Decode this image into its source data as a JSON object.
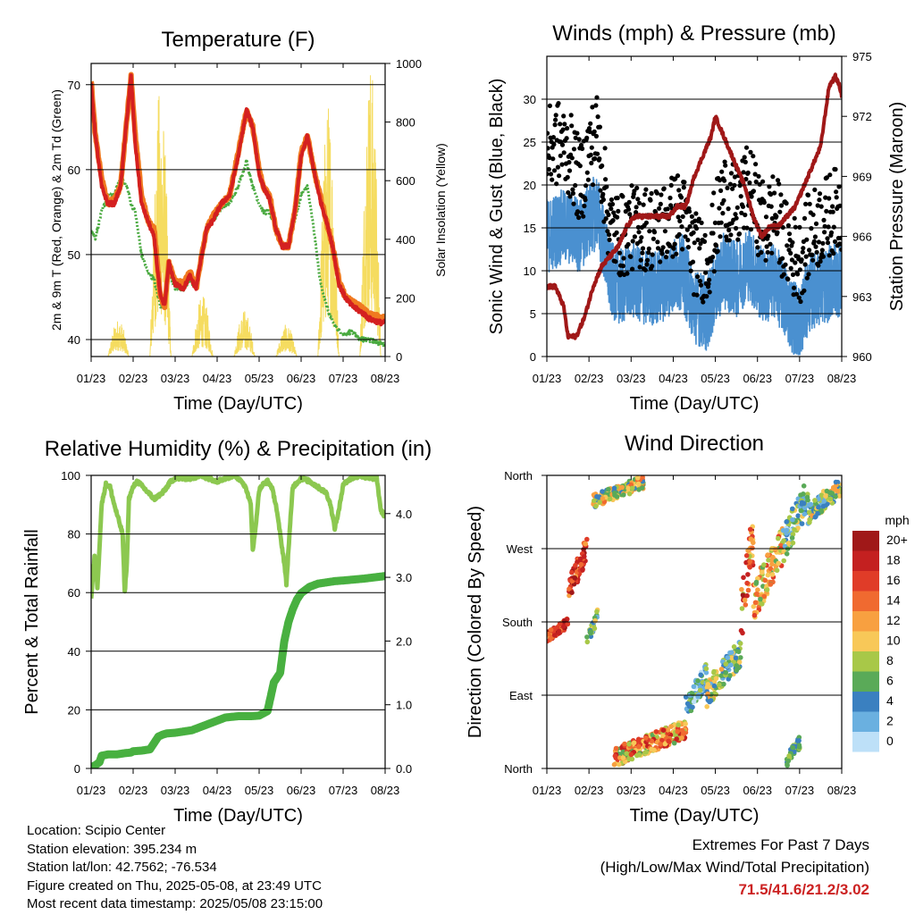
{
  "chart_data": [
    {
      "id": "temperature",
      "type": "line",
      "title": "Temperature (F)",
      "xlabel": "Time (Day/UTC)",
      "ylabel": "2m & 9m T (Red, Orange) & 2m Td (Green)",
      "ylabel_right": "Solar Insolation (Yellow)",
      "x_ticks": [
        "01/23",
        "02/23",
        "03/23",
        "04/23",
        "05/23",
        "06/23",
        "07/23",
        "08/23"
      ],
      "xlim": [
        0,
        7
      ],
      "ylim": [
        38,
        72.5
      ],
      "y_ticks": [
        40,
        50,
        60,
        70
      ],
      "ylim_right": [
        0,
        1000
      ],
      "y_ticks_right": [
        0,
        200,
        400,
        600,
        800,
        1000
      ],
      "grid": true,
      "colors": {
        "t2m": "#d42020",
        "t9m": "#f07a20",
        "td": "#4aaa40",
        "solar": "#f5dc60"
      },
      "series": [
        {
          "key": "t9m",
          "x": [
            0,
            0.1,
            0.25,
            0.4,
            0.55,
            0.7,
            0.85,
            0.95,
            1.05,
            1.2,
            1.35,
            1.5,
            1.65,
            1.75,
            1.85,
            2.0,
            2.2,
            2.35,
            2.5,
            2.6,
            2.75,
            2.9,
            3.1,
            3.3,
            3.5,
            3.7,
            3.85,
            4.0,
            4.1,
            4.25,
            4.4,
            4.55,
            4.7,
            4.85,
            5.0,
            5.15,
            5.3,
            5.45,
            5.6,
            5.75,
            5.9,
            6.05,
            6.2,
            6.35,
            6.5,
            6.6,
            6.75,
            6.9,
            7.0
          ],
          "y": [
            70.5,
            64,
            59,
            56,
            56.5,
            58,
            66,
            71,
            64,
            57,
            54,
            53,
            45,
            44,
            49,
            47,
            46.5,
            48,
            46,
            49,
            53,
            54.5,
            56,
            57,
            62,
            67,
            65,
            60,
            58,
            57,
            53,
            51,
            51,
            55,
            62,
            64,
            60,
            57,
            54,
            51,
            47,
            45,
            44.5,
            44,
            43.5,
            43,
            42.8,
            42.5,
            42.5
          ]
        },
        {
          "key": "t2m",
          "x": [
            0,
            0.1,
            0.25,
            0.4,
            0.55,
            0.7,
            0.85,
            0.95,
            1.05,
            1.2,
            1.35,
            1.5,
            1.65,
            1.75,
            1.85,
            2.0,
            2.2,
            2.35,
            2.5,
            2.6,
            2.75,
            2.9,
            3.1,
            3.3,
            3.5,
            3.7,
            3.85,
            4.0,
            4.1,
            4.25,
            4.4,
            4.55,
            4.7,
            4.85,
            5.0,
            5.15,
            5.3,
            5.45,
            5.6,
            5.75,
            5.9,
            6.05,
            6.2,
            6.35,
            6.5,
            6.6,
            6.75,
            6.9,
            7.0
          ],
          "y": [
            70,
            64,
            58,
            56,
            56,
            58,
            66,
            71,
            63,
            56,
            54,
            52,
            45,
            44,
            49,
            46.5,
            46,
            47.5,
            46,
            49,
            53,
            54,
            56,
            57,
            61.5,
            67,
            65,
            59.5,
            58,
            56.5,
            53,
            51,
            51,
            55,
            61.5,
            64,
            60,
            56.5,
            54,
            51,
            46.5,
            45,
            44,
            43.5,
            43,
            42.5,
            42.2,
            42,
            42
          ]
        },
        {
          "key": "td",
          "x": [
            0,
            0.1,
            0.25,
            0.4,
            0.55,
            0.7,
            0.85,
            0.95,
            1.05,
            1.2,
            1.35,
            1.5,
            1.65,
            1.75,
            1.85,
            2.0,
            2.2,
            2.35,
            2.5,
            2.6,
            2.75,
            2.9,
            3.1,
            3.3,
            3.5,
            3.7,
            3.85,
            4.0,
            4.1,
            4.25,
            4.4,
            4.55,
            4.7,
            4.85,
            5.0,
            5.15,
            5.3,
            5.45,
            5.6,
            5.75,
            5.9,
            6.05,
            6.2,
            6.35,
            6.5,
            6.6,
            6.75,
            6.9,
            7.0
          ],
          "y": [
            53,
            52,
            55,
            57,
            57,
            59,
            58,
            56,
            55,
            50,
            48,
            47,
            44,
            44,
            48,
            46,
            46,
            47,
            46,
            48.5,
            53,
            54,
            55.5,
            56,
            58,
            61,
            58,
            56,
            55,
            55,
            53,
            51,
            51,
            54,
            57,
            58,
            53,
            47,
            44,
            42,
            41,
            40.5,
            41,
            40.2,
            40,
            40,
            39.8,
            39.5,
            39.5
          ]
        },
        {
          "key": "solar",
          "days": [
            0,
            1,
            2,
            3,
            4,
            5,
            6
          ],
          "peaks": [
            130,
            940,
            210,
            160,
            110,
            880,
            1020
          ],
          "noon_offset": 0.65
        }
      ]
    },
    {
      "id": "winds",
      "type": "line",
      "title": "Winds (mph) & Pressure (mb)",
      "xlabel": "Time (Day/UTC)",
      "ylabel": "Sonic Wind & Gust (Blue, Black)",
      "ylabel_right": "Station Pressure (Maroon)",
      "x_ticks": [
        "01/23",
        "02/23",
        "03/23",
        "04/23",
        "05/23",
        "06/23",
        "07/23",
        "08/23"
      ],
      "xlim": [
        0,
        7
      ],
      "ylim": [
        0,
        35
      ],
      "y_ticks": [
        0,
        5,
        10,
        15,
        20,
        25,
        30
      ],
      "ylim_right": [
        960,
        975
      ],
      "y_ticks_right": [
        960,
        963,
        966,
        969,
        972,
        975
      ],
      "grid": true,
      "colors": {
        "wind": "#4a90d0",
        "gust": "#000000",
        "pressure": "#a01818"
      },
      "series": [
        {
          "key": "wind_level",
          "x": [
            0,
            0.3,
            0.6,
            0.8,
            1.0,
            1.2,
            1.5,
            1.8,
            2.0,
            2.3,
            2.6,
            2.9,
            3.2,
            3.5,
            3.8,
            4.0,
            4.2,
            4.5,
            4.8,
            5.0,
            5.2,
            5.4,
            5.6,
            5.8,
            6.0,
            6.2,
            6.4,
            6.6,
            6.8,
            7.0
          ],
          "y": [
            14,
            15,
            15,
            14,
            16,
            17,
            9,
            8,
            9,
            8,
            8,
            9,
            10,
            6,
            5,
            8,
            10,
            9,
            11,
            9,
            8,
            9,
            7,
            5,
            4,
            7,
            8,
            8,
            9,
            9
          ]
        },
        {
          "key": "gust_level",
          "x": [
            0,
            0.3,
            0.6,
            0.8,
            1.0,
            1.2,
            1.5,
            1.8,
            2.0,
            2.3,
            2.6,
            2.9,
            3.2,
            3.5,
            3.8,
            4.0,
            4.2,
            4.5,
            4.8,
            5.0,
            5.2,
            5.4,
            5.6,
            5.8,
            6.0,
            6.2,
            6.4,
            6.6,
            6.8,
            7.0
          ],
          "y": [
            22,
            23,
            21,
            18,
            22,
            24,
            13,
            12,
            13,
            13,
            13,
            14,
            15,
            10,
            9,
            13,
            17,
            15,
            18,
            15,
            13,
            15,
            12,
            10,
            9,
            12,
            13,
            14,
            15,
            15
          ]
        },
        {
          "key": "pressure",
          "x": [
            0,
            0.2,
            0.4,
            0.5,
            0.7,
            0.9,
            1.1,
            1.3,
            1.5,
            1.7,
            1.9,
            2.1,
            2.3,
            2.5,
            2.7,
            2.9,
            3.1,
            3.3,
            3.5,
            3.7,
            3.9,
            4.0,
            4.1,
            4.3,
            4.5,
            4.7,
            4.9,
            5.1,
            5.3,
            5.5,
            5.7,
            5.9,
            6.1,
            6.3,
            6.5,
            6.7,
            6.85,
            6.95,
            7.0
          ],
          "y": [
            963.5,
            963.5,
            962.5,
            961,
            961,
            962,
            963.5,
            964.5,
            965,
            965.5,
            966.5,
            967,
            967,
            967,
            967,
            967,
            967.5,
            967.5,
            969,
            970,
            971,
            972,
            971.5,
            970.5,
            969.5,
            968.5,
            967,
            966,
            966.5,
            966.5,
            967,
            967.5,
            968.5,
            969.5,
            970.5,
            973.5,
            974,
            973.5,
            973
          ]
        }
      ]
    },
    {
      "id": "humidity_precip",
      "type": "line",
      "title": "Relative Humidity (%) & Precipitation (in)",
      "xlabel": "Time (Day/UTC)",
      "ylabel": "Percent & Total Rainfall",
      "x_ticks": [
        "01/23",
        "02/23",
        "03/23",
        "04/23",
        "05/23",
        "06/23",
        "07/23",
        "08/23"
      ],
      "xlim": [
        0,
        7
      ],
      "ylim": [
        0,
        100
      ],
      "y_ticks": [
        0,
        20,
        40,
        60,
        80,
        100
      ],
      "ylim_right": [
        0,
        4.6
      ],
      "y_ticks_right": [
        "0.0",
        "1.0",
        "2.0",
        "3.0",
        "4.0"
      ],
      "grid": true,
      "colors": {
        "rh": "#8cc850",
        "precip": "#48b040"
      },
      "series": [
        {
          "key": "rh",
          "x": [
            0,
            0.08,
            0.15,
            0.25,
            0.35,
            0.45,
            0.55,
            0.65,
            0.75,
            0.8,
            0.85,
            0.9,
            1.0,
            1.1,
            1.3,
            1.5,
            1.7,
            1.9,
            2.0,
            2.2,
            2.4,
            2.6,
            2.8,
            3.0,
            3.2,
            3.4,
            3.6,
            3.7,
            3.8,
            3.85,
            3.9,
            4.0,
            4.1,
            4.2,
            4.3,
            4.4,
            4.5,
            4.6,
            4.65,
            4.7,
            4.8,
            5.0,
            5.2,
            5.4,
            5.6,
            5.7,
            5.8,
            5.9,
            6.0,
            6.2,
            6.4,
            6.6,
            6.8,
            6.9,
            7.0
          ],
          "y": [
            58,
            72,
            62,
            90,
            97,
            96,
            90,
            85,
            80,
            60,
            70,
            92,
            96,
            98,
            95,
            92,
            94,
            98,
            99,
            99,
            99,
            100,
            99,
            98,
            99,
            100,
            98,
            95,
            90,
            75,
            80,
            95,
            97,
            98,
            96,
            90,
            80,
            70,
            63,
            75,
            96,
            99,
            98,
            96,
            94,
            90,
            82,
            88,
            97,
            99,
            100,
            99,
            99,
            88,
            86
          ]
        },
        {
          "key": "precip",
          "x": [
            0,
            0.1,
            0.2,
            0.25,
            0.4,
            0.6,
            0.8,
            0.95,
            1.0,
            1.2,
            1.4,
            1.6,
            1.7,
            1.8,
            2.0,
            2.4,
            2.8,
            3.0,
            3.2,
            3.5,
            3.8,
            4.0,
            4.2,
            4.35,
            4.4,
            4.5,
            4.6,
            4.7,
            4.8,
            4.9,
            5.0,
            5.2,
            5.4,
            5.6,
            5.8,
            6.0,
            6.5,
            7.0
          ],
          "y": [
            0.02,
            0.05,
            0.1,
            0.2,
            0.22,
            0.22,
            0.24,
            0.25,
            0.27,
            0.28,
            0.3,
            0.5,
            0.53,
            0.55,
            0.56,
            0.6,
            0.7,
            0.75,
            0.8,
            0.82,
            0.82,
            0.83,
            0.9,
            1.35,
            1.4,
            1.5,
            2.0,
            2.3,
            2.5,
            2.65,
            2.75,
            2.85,
            2.9,
            2.92,
            2.94,
            2.95,
            2.98,
            3.02
          ]
        }
      ]
    },
    {
      "id": "wind_direction",
      "type": "scatter",
      "title": "Wind Direction",
      "xlabel": "Time (Day/UTC)",
      "ylabel": "Direction (Colored By Speed)",
      "x_ticks": [
        "01/23",
        "02/23",
        "03/23",
        "04/23",
        "05/23",
        "06/23",
        "07/23",
        "08/23"
      ],
      "xlim": [
        0,
        7
      ],
      "ylim": [
        0,
        360
      ],
      "y_ticks": [
        "North",
        "East",
        "South",
        "West",
        "North"
      ],
      "grid": true,
      "legend": {
        "title": "mph",
        "position": "right",
        "labels": [
          "20+",
          "18",
          "16",
          "14",
          "12",
          "10",
          "8",
          "6",
          "4",
          "2",
          "0"
        ],
        "colors": [
          "#a01818",
          "#c42020",
          "#e03c28",
          "#f06a30",
          "#f8a040",
          "#f8c858",
          "#a8c848",
          "#5aaa58",
          "#3a80c0",
          "#6ab0e0",
          "#bde0f8"
        ]
      },
      "clusters": [
        {
          "x": [
            0,
            0.5
          ],
          "dir": [
            155,
            185
          ],
          "speed": [
            12,
            20
          ]
        },
        {
          "x": [
            0.5,
            0.95
          ],
          "dir": [
            205,
            285
          ],
          "speed": [
            12,
            20
          ]
        },
        {
          "x": [
            0.95,
            1.2
          ],
          "dir": [
            150,
            195
          ],
          "speed": [
            2,
            10
          ]
        },
        {
          "x": [
            1.1,
            2.3
          ],
          "dir": [
            320,
            360
          ],
          "speed": [
            4,
            14
          ]
        },
        {
          "x": [
            1.6,
            3.3
          ],
          "dir": [
            2,
            60
          ],
          "speed": [
            6,
            18
          ]
        },
        {
          "x": [
            3.3,
            3.8
          ],
          "dir": [
            60,
            130
          ],
          "speed": [
            0,
            8
          ]
        },
        {
          "x": [
            3.8,
            4.6
          ],
          "dir": [
            75,
            160
          ],
          "speed": [
            2,
            12
          ]
        },
        {
          "x": [
            4.6,
            4.9
          ],
          "dir": [
            150,
            320
          ],
          "speed": [
            8,
            20
          ]
        },
        {
          "x": [
            4.9,
            5.6
          ],
          "dir": [
            180,
            300
          ],
          "speed": [
            6,
            16
          ]
        },
        {
          "x": [
            5.6,
            6.2
          ],
          "dir": [
            250,
            360
          ],
          "speed": [
            0,
            10
          ]
        },
        {
          "x": [
            6.2,
            7.0
          ],
          "dir": [
            300,
            360
          ],
          "speed": [
            2,
            12
          ]
        },
        {
          "x": [
            5.7,
            6.0
          ],
          "dir": [
            2,
            40
          ],
          "speed": [
            4,
            8
          ]
        }
      ]
    }
  ],
  "info": {
    "location": "Location: Scipio Center",
    "elevation": "Station elevation: 395.234 m",
    "latlon": "Station lat/lon: 42.7562; -76.534",
    "created": "Figure created on Thu, 2025-05-08, at 23:49 UTC",
    "timestamp": "Most recent data timestamp: 2025/05/08 23:15:00"
  },
  "extremes": {
    "title": "Extremes For Past 7 Days",
    "subtitle": "(High/Low/Max Wind/Total Precipitation)",
    "values": "71.5/41.6/21.2/3.02"
  }
}
